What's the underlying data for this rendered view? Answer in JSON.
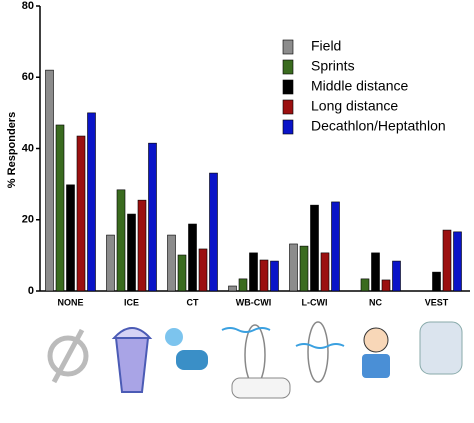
{
  "chart_data": {
    "type": "bar",
    "y_label": "% Responders",
    "categories": [
      "NONE",
      "ICE",
      "CT",
      "WB-CWI",
      "L-CWI",
      "NC",
      "VEST"
    ],
    "series": [
      {
        "name": "Field",
        "color": "#8c8c8c",
        "values": [
          62,
          15.7,
          15.7,
          1.4,
          13.2,
          0,
          0
        ]
      },
      {
        "name": "Sprints",
        "color": "#3a6b1f",
        "values": [
          46.6,
          28.4,
          10.1,
          3.4,
          12.6,
          3.4,
          0
        ]
      },
      {
        "name": "Middle distance",
        "color": "#000000",
        "values": [
          29.8,
          21.6,
          18.8,
          10.7,
          24.1,
          10.7,
          5.3
        ]
      },
      {
        "name": "Long distance",
        "color": "#9b1010",
        "values": [
          43.5,
          25.5,
          11.8,
          8.7,
          10.7,
          3.1,
          17.1
        ]
      },
      {
        "name": "Decathlon/Heptathlon",
        "color": "#0a14c8",
        "values": [
          50,
          41.5,
          33.1,
          8.4,
          25,
          8.4,
          16.6
        ]
      }
    ],
    "ylim": [
      0,
      80
    ],
    "yticks": [
      0,
      20,
      40,
      60,
      80
    ],
    "legend": "upper right"
  }
}
